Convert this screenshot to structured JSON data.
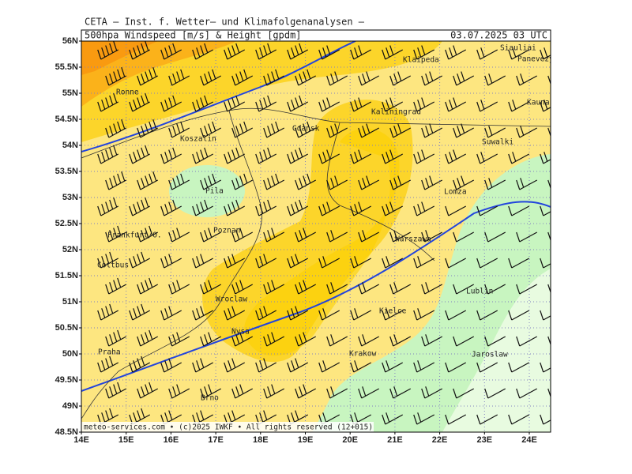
{
  "header": {
    "title": "CETA – Inst. f. Wetter– und Klimafolgenanalysen –",
    "subtitle": "500hpa Windspeed [m/s] & Height [gpdm]",
    "datetime": "03.07.2025 03 UTC"
  },
  "axes": {
    "lat_labels": [
      "56N",
      "55.5N",
      "55N",
      "54.5N",
      "54N",
      "53.5N",
      "53N",
      "52.5N",
      "52N",
      "51.5N",
      "51N",
      "50.5N",
      "50N",
      "49.5N",
      "49N",
      "48.5N"
    ],
    "lon_labels": [
      "14E",
      "15E",
      "16E",
      "17E",
      "18E",
      "19E",
      "20E",
      "21E",
      "22E",
      "23E",
      "24E"
    ]
  },
  "cities": [
    "Ronne",
    "Koszalin",
    "Gdansk",
    "Klaipeda",
    "Siauliai",
    "Panevezys",
    "Kaunas",
    "Kaliningrad",
    "Suwalki",
    "Lomza",
    "Pila",
    "Poznan",
    "Frankfurt/O.",
    "Cottbus",
    "Warszawa",
    "Wroclaw",
    "Nysa",
    "Kielce",
    "Lublin",
    "Praha",
    "Krakow",
    "Jaroslaw",
    "Brno"
  ],
  "footer": "meteo-services.com • (c)2025 IWKF • All rights reserved (12+015)"
}
